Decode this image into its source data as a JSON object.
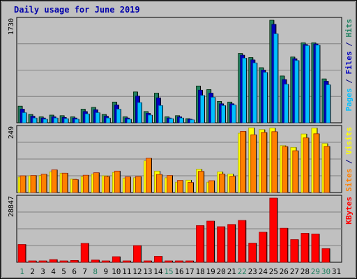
{
  "chart_data": {
    "type": "bar",
    "title": "Daily usage for June 2019",
    "days": [
      "1",
      "2",
      "3",
      "4",
      "5",
      "6",
      "7",
      "8",
      "9",
      "10",
      "11",
      "12",
      "13",
      "14",
      "15",
      "16",
      "17",
      "18",
      "19",
      "20",
      "21",
      "22",
      "23",
      "24",
      "25",
      "26",
      "27",
      "28",
      "29",
      "30",
      "31"
    ],
    "weekend_days": [
      "1",
      "8",
      "15",
      "22",
      "29",
      "30"
    ],
    "panels": [
      {
        "id": "hits-panel",
        "max_label": "1730",
        "ymax": 1730,
        "side_labels": [
          {
            "text": "Pages",
            "color": "#00c0ff"
          },
          {
            "text": " / ",
            "color": "#000080"
          },
          {
            "text": "Files",
            "color": "#0000c0"
          },
          {
            "text": " / ",
            "color": "#000080"
          },
          {
            "text": "Hits",
            "color": "#208060"
          }
        ],
        "series": [
          {
            "name": "Hits",
            "color": "#208060",
            "values": [
              280,
              140,
              100,
              130,
              120,
              100,
              230,
              260,
              140,
              350,
              100,
              520,
              190,
              500,
              100,
              120,
              70,
              620,
              560,
              360,
              350,
              1170,
              1100,
              930,
              1730,
              790,
              1110,
              1350,
              1350,
              740,
              0
            ]
          },
          {
            "name": "Files",
            "color": "#0000c0",
            "values": [
              230,
              110,
              80,
              100,
              90,
              80,
              190,
              220,
              110,
              300,
              80,
              450,
              160,
              420,
              80,
              100,
              60,
              550,
              500,
              320,
              320,
              1140,
              1060,
              890,
              1660,
              730,
              1080,
              1320,
              1330,
              700,
              0
            ]
          },
          {
            "name": "Pages",
            "color": "#00c0ff",
            "values": [
              170,
              80,
              60,
              80,
              70,
              60,
              150,
              170,
              80,
              230,
              60,
              340,
              130,
              290,
              70,
              80,
              50,
              460,
              430,
              290,
              300,
              1090,
              1010,
              850,
              1500,
              650,
              1050,
              1300,
              1310,
              640,
              0
            ]
          }
        ]
      },
      {
        "id": "visits-panel",
        "max_label": "249",
        "ymax": 249,
        "side_labels": [
          {
            "text": "Sites",
            "color": "#ff8000"
          },
          {
            "text": " / ",
            "color": "#000080"
          },
          {
            "text": "Visits",
            "color": "#ffff00"
          }
        ],
        "series": [
          {
            "name": "Visits",
            "color": "#ffff00",
            "values": [
              60,
              65,
              66,
              80,
              75,
              52,
              62,
              72,
              65,
              78,
              56,
              57,
              123,
              83,
              57,
              40,
              48,
              90,
              40,
              80,
              72,
              230,
              251,
              244,
              250,
              182,
              175,
              227,
              250,
              190,
              0
            ]
          },
          {
            "name": "Sites",
            "color": "#ff8000",
            "values": [
              65,
              66,
              71,
              88,
              75,
              50,
              67,
              77,
              62,
              83,
              61,
              62,
              133,
              70,
              66,
              47,
              39,
              82,
              46,
              72,
              63,
              237,
              224,
              233,
              236,
              178,
              162,
              212,
              228,
              179,
              0
            ]
          }
        ]
      },
      {
        "id": "kbytes-panel",
        "max_label": "28847",
        "ymax": 28847,
        "side_labels": [
          {
            "text": "KBytes",
            "color": "#ff0000"
          }
        ],
        "series": [
          {
            "name": "KBytes",
            "color": "#ff0000",
            "values": [
              8000,
              500,
              500,
              1200,
              500,
              800,
              8500,
              1000,
              500,
              2500,
              500,
              7500,
              600,
              2700,
              500,
              500,
              500,
              16500,
              18500,
              16000,
              17000,
              18800,
              8600,
              13500,
              28847,
              15300,
              10200,
              13000,
              12700,
              6100,
              0
            ]
          }
        ]
      }
    ]
  }
}
